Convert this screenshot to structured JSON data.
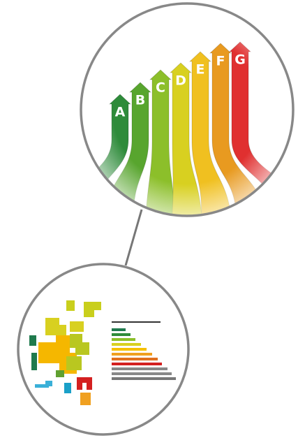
{
  "top_illustration": {
    "labels": [
      "A",
      "B",
      "C",
      "D",
      "E",
      "F",
      "G"
    ]
  }
}
